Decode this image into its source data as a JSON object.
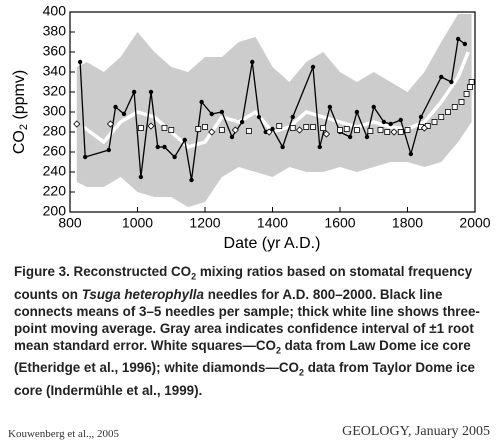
{
  "chart_data": {
    "type": "line",
    "xlabel": "Date (yr A.D.)",
    "ylabel": [
      "CO",
      "2",
      " (ppmv)"
    ],
    "xlim": [
      800,
      2000
    ],
    "xticks": [
      800,
      1000,
      1200,
      1400,
      1600,
      1800,
      2000
    ],
    "ylim": [
      200,
      400
    ],
    "yticks": [
      200,
      220,
      240,
      260,
      280,
      300,
      320,
      340,
      360,
      380,
      400
    ],
    "band": {
      "color": "#cccccc",
      "x": [
        820,
        850,
        900,
        950,
        1000,
        1050,
        1100,
        1150,
        1200,
        1250,
        1300,
        1350,
        1400,
        1450,
        1500,
        1550,
        1600,
        1650,
        1700,
        1750,
        1800,
        1850,
        1900,
        1950,
        1990
      ],
      "upper": [
        345,
        350,
        340,
        355,
        380,
        360,
        345,
        340,
        355,
        355,
        370,
        375,
        345,
        330,
        350,
        360,
        340,
        330,
        340,
        330,
        320,
        340,
        370,
        398,
        398
      ],
      "lower": [
        230,
        225,
        225,
        235,
        220,
        215,
        215,
        205,
        210,
        235,
        245,
        240,
        235,
        245,
        240,
        240,
        245,
        240,
        245,
        250,
        250,
        245,
        250,
        270,
        290
      ]
    },
    "series": [
      {
        "color": "#ffffff",
        "line": "thick",
        "marker": "none",
        "x": [
          840,
          900,
          950,
          1000,
          1050,
          1100,
          1150,
          1200,
          1250,
          1300,
          1350,
          1400,
          1450,
          1500,
          1550,
          1600,
          1650,
          1700,
          1750,
          1800,
          1850,
          1900,
          1950,
          1980
        ],
        "values": [
          285,
          270,
          290,
          300,
          295,
          280,
          265,
          270,
          295,
          290,
          300,
          280,
          285,
          300,
          295,
          290,
          285,
          290,
          285,
          283,
          290,
          310,
          335,
          360
        ]
      },
      {
        "color": "#000000",
        "line": "thin",
        "marker": "circle",
        "x": [
          830,
          845,
          915,
          935,
          960,
          990,
          1010,
          1040,
          1060,
          1080,
          1110,
          1140,
          1160,
          1190,
          1220,
          1250,
          1280,
          1310,
          1340,
          1360,
          1380,
          1400,
          1430,
          1460,
          1520,
          1540,
          1570,
          1600,
          1630,
          1650,
          1680,
          1700,
          1730,
          1750,
          1780,
          1810,
          1840,
          1900,
          1930,
          1950,
          1970
        ],
        "values": [
          350,
          255,
          262,
          305,
          298,
          320,
          235,
          320,
          265,
          265,
          255,
          272,
          232,
          310,
          298,
          300,
          275,
          290,
          350,
          295,
          280,
          283,
          265,
          295,
          345,
          265,
          305,
          280,
          275,
          300,
          275,
          305,
          290,
          288,
          292,
          258,
          295,
          335,
          330,
          373,
          368
        ]
      },
      {
        "color": "#000000",
        "line": "none",
        "marker": "square",
        "x": [
          1010,
          1080,
          1100,
          1180,
          1200,
          1250,
          1330,
          1420,
          1460,
          1500,
          1520,
          1550,
          1600,
          1620,
          1650,
          1690,
          1720,
          1740,
          1780,
          1800,
          1840,
          1860,
          1880,
          1900,
          1920,
          1940,
          1960,
          1975,
          1985,
          1990
        ],
        "values": [
          284,
          284,
          282,
          283,
          285,
          282,
          281,
          286,
          284,
          285,
          285,
          284,
          282,
          283,
          282,
          281,
          282,
          280,
          280,
          282,
          285,
          286,
          290,
          295,
          300,
          305,
          310,
          318,
          325,
          330
        ]
      },
      {
        "color": "#000000",
        "line": "none",
        "marker": "diamond",
        "x": [
          820,
          920,
          1040,
          1220,
          1290,
          1390,
          1480,
          1560,
          1760,
          1850
        ],
        "values": [
          288,
          288,
          286,
          280,
          282,
          280,
          282,
          278,
          280,
          284
        ]
      }
    ]
  },
  "caption": [
    "Figure 3. Reconstructed CO",
    "2",
    " mixing ratios based on stomatal frequency counts on ",
    "Tsuga heterophylla",
    " needles for A.D. 800–2000. Black line connects means of 3–5 needles per sample; thick white line shows three-point moving average. Gray area indicates confidence interval of ±1 root mean standard error. White squares—CO",
    "2",
    " data from Law Dome ice core (Etheridge et al., 1996); white diamonds—CO",
    "2",
    " data from Taylor Dome ice core (Indermühle et al., 1999)."
  ],
  "footer": {
    "left": "Kouwenberg et al.,, 2005",
    "right": "GEOLOGY, January 2005"
  }
}
